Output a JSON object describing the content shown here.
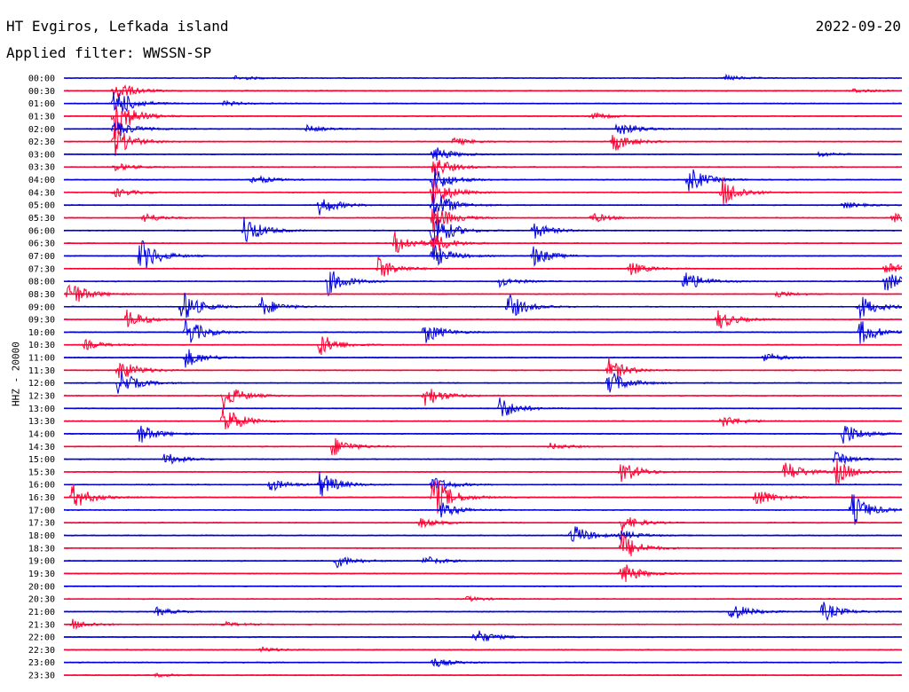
{
  "header": {
    "station": "HT Evgiros, Lefkada island",
    "date": "2022-09-20",
    "filter": "Applied filter: WWSSN-SP"
  },
  "chart_data": {
    "type": "line",
    "title": "HT Evgiros, Lefkada island",
    "ylabel": "HHZ - 20000",
    "colors": [
      "#0000dd",
      "#ff0033"
    ],
    "grid": false,
    "traces": [
      {
        "label": "00:00",
        "events": [
          {
            "x": 0.205,
            "amp": 3
          },
          {
            "x": 0.79,
            "amp": 3
          }
        ]
      },
      {
        "label": "00:30",
        "events": [
          {
            "x": 0.06,
            "amp": 14
          },
          {
            "x": 0.94,
            "amp": 3
          }
        ]
      },
      {
        "label": "01:00",
        "events": [
          {
            "x": 0.06,
            "amp": 20
          },
          {
            "x": 0.19,
            "amp": 3
          }
        ]
      },
      {
        "label": "01:30",
        "events": [
          {
            "x": 0.06,
            "amp": 28
          },
          {
            "x": 0.63,
            "amp": 4
          }
        ]
      },
      {
        "label": "02:00",
        "events": [
          {
            "x": 0.06,
            "amp": 12
          },
          {
            "x": 0.29,
            "amp": 4
          },
          {
            "x": 0.66,
            "amp": 10
          }
        ]
      },
      {
        "label": "02:30",
        "events": [
          {
            "x": 0.06,
            "amp": 18
          },
          {
            "x": 0.465,
            "amp": 5
          },
          {
            "x": 0.655,
            "amp": 12
          }
        ]
      },
      {
        "label": "03:00",
        "events": [
          {
            "x": 0.44,
            "amp": 10
          },
          {
            "x": 0.9,
            "amp": 3
          }
        ]
      },
      {
        "label": "03:30",
        "events": [
          {
            "x": 0.06,
            "amp": 5
          },
          {
            "x": 0.44,
            "amp": 14
          }
        ]
      },
      {
        "label": "04:00",
        "events": [
          {
            "x": 0.225,
            "amp": 6
          },
          {
            "x": 0.44,
            "amp": 16
          },
          {
            "x": 0.745,
            "amp": 16
          }
        ]
      },
      {
        "label": "04:30",
        "events": [
          {
            "x": 0.06,
            "amp": 6
          },
          {
            "x": 0.44,
            "amp": 18
          },
          {
            "x": 0.785,
            "amp": 18
          }
        ]
      },
      {
        "label": "05:00",
        "events": [
          {
            "x": 0.305,
            "amp": 12
          },
          {
            "x": 0.44,
            "amp": 20
          },
          {
            "x": 0.93,
            "amp": 4
          }
        ]
      },
      {
        "label": "05:30",
        "events": [
          {
            "x": 0.095,
            "amp": 6
          },
          {
            "x": 0.44,
            "amp": 18
          },
          {
            "x": 0.63,
            "amp": 6
          },
          {
            "x": 0.99,
            "amp": 8
          }
        ]
      },
      {
        "label": "06:00",
        "events": [
          {
            "x": 0.215,
            "amp": 18
          },
          {
            "x": 0.44,
            "amp": 24
          },
          {
            "x": 0.56,
            "amp": 10
          }
        ]
      },
      {
        "label": "06:30",
        "events": [
          {
            "x": 0.395,
            "amp": 14
          },
          {
            "x": 0.44,
            "amp": 12
          }
        ]
      },
      {
        "label": "07:00",
        "events": [
          {
            "x": 0.09,
            "amp": 22
          },
          {
            "x": 0.44,
            "amp": 14
          },
          {
            "x": 0.56,
            "amp": 12
          }
        ]
      },
      {
        "label": "07:30",
        "events": [
          {
            "x": 0.375,
            "amp": 14
          },
          {
            "x": 0.675,
            "amp": 8
          },
          {
            "x": 0.98,
            "amp": 10
          }
        ]
      },
      {
        "label": "08:00",
        "events": [
          {
            "x": 0.315,
            "amp": 16
          },
          {
            "x": 0.52,
            "amp": 6
          },
          {
            "x": 0.74,
            "amp": 14
          },
          {
            "x": 0.98,
            "amp": 12
          }
        ]
      },
      {
        "label": "08:30",
        "events": [
          {
            "x": 0.005,
            "amp": 18
          },
          {
            "x": 0.85,
            "amp": 4
          }
        ]
      },
      {
        "label": "09:00",
        "events": [
          {
            "x": 0.14,
            "amp": 20
          },
          {
            "x": 0.235,
            "amp": 12
          },
          {
            "x": 0.53,
            "amp": 16
          },
          {
            "x": 0.95,
            "amp": 14
          }
        ]
      },
      {
        "label": "09:30",
        "events": [
          {
            "x": 0.075,
            "amp": 12
          },
          {
            "x": 0.78,
            "amp": 12
          }
        ]
      },
      {
        "label": "10:00",
        "events": [
          {
            "x": 0.145,
            "amp": 18
          },
          {
            "x": 0.43,
            "amp": 14
          },
          {
            "x": 0.95,
            "amp": 16
          }
        ]
      },
      {
        "label": "10:30",
        "events": [
          {
            "x": 0.025,
            "amp": 6
          },
          {
            "x": 0.305,
            "amp": 14
          }
        ]
      },
      {
        "label": "11:00",
        "events": [
          {
            "x": 0.145,
            "amp": 12
          },
          {
            "x": 0.835,
            "amp": 6
          }
        ]
      },
      {
        "label": "11:30",
        "events": [
          {
            "x": 0.065,
            "amp": 14
          },
          {
            "x": 0.65,
            "amp": 14
          }
        ]
      },
      {
        "label": "12:00",
        "events": [
          {
            "x": 0.065,
            "amp": 16
          },
          {
            "x": 0.65,
            "amp": 16
          }
        ]
      },
      {
        "label": "12:30",
        "events": [
          {
            "x": 0.19,
            "amp": 16
          },
          {
            "x": 0.43,
            "amp": 14
          }
        ]
      },
      {
        "label": "13:00",
        "events": [
          {
            "x": 0.52,
            "amp": 14
          }
        ]
      },
      {
        "label": "13:30",
        "events": [
          {
            "x": 0.19,
            "amp": 20
          },
          {
            "x": 0.785,
            "amp": 8
          }
        ]
      },
      {
        "label": "14:00",
        "events": [
          {
            "x": 0.09,
            "amp": 12
          },
          {
            "x": 0.93,
            "amp": 14
          }
        ]
      },
      {
        "label": "14:30",
        "events": [
          {
            "x": 0.32,
            "amp": 12
          },
          {
            "x": 0.58,
            "amp": 4
          }
        ]
      },
      {
        "label": "15:00",
        "events": [
          {
            "x": 0.12,
            "amp": 8
          },
          {
            "x": 0.92,
            "amp": 8
          }
        ]
      },
      {
        "label": "15:30",
        "events": [
          {
            "x": 0.665,
            "amp": 14
          },
          {
            "x": 0.86,
            "amp": 14
          },
          {
            "x": 0.92,
            "amp": 16
          }
        ]
      },
      {
        "label": "16:00",
        "events": [
          {
            "x": 0.245,
            "amp": 8
          },
          {
            "x": 0.305,
            "amp": 16
          },
          {
            "x": 0.44,
            "amp": 10
          }
        ]
      },
      {
        "label": "16:30",
        "events": [
          {
            "x": 0.01,
            "amp": 16
          },
          {
            "x": 0.44,
            "amp": 28
          },
          {
            "x": 0.825,
            "amp": 12
          }
        ]
      },
      {
        "label": "17:00",
        "events": [
          {
            "x": 0.45,
            "amp": 10
          },
          {
            "x": 0.94,
            "amp": 20
          }
        ]
      },
      {
        "label": "17:30",
        "events": [
          {
            "x": 0.425,
            "amp": 6
          },
          {
            "x": 0.665,
            "amp": 10
          }
        ]
      },
      {
        "label": "18:00",
        "events": [
          {
            "x": 0.605,
            "amp": 14
          },
          {
            "x": 0.665,
            "amp": 6
          }
        ]
      },
      {
        "label": "18:30",
        "events": [
          {
            "x": 0.665,
            "amp": 18
          }
        ]
      },
      {
        "label": "19:00",
        "events": [
          {
            "x": 0.325,
            "amp": 8
          },
          {
            "x": 0.43,
            "amp": 6
          }
        ]
      },
      {
        "label": "19:30",
        "events": [
          {
            "x": 0.665,
            "amp": 14
          }
        ]
      },
      {
        "label": "20:00",
        "events": []
      },
      {
        "label": "20:30",
        "events": [
          {
            "x": 0.48,
            "amp": 3
          }
        ]
      },
      {
        "label": "21:00",
        "events": [
          {
            "x": 0.11,
            "amp": 5
          },
          {
            "x": 0.795,
            "amp": 12
          },
          {
            "x": 0.905,
            "amp": 12
          }
        ]
      },
      {
        "label": "21:30",
        "events": [
          {
            "x": 0.01,
            "amp": 6
          },
          {
            "x": 0.19,
            "amp": 3
          }
        ]
      },
      {
        "label": "22:00",
        "events": [
          {
            "x": 0.49,
            "amp": 10
          }
        ]
      },
      {
        "label": "22:30",
        "events": [
          {
            "x": 0.235,
            "amp": 3
          }
        ]
      },
      {
        "label": "23:00",
        "events": [
          {
            "x": 0.44,
            "amp": 6
          }
        ]
      },
      {
        "label": "23:30",
        "events": [
          {
            "x": 0.11,
            "amp": 2
          }
        ]
      }
    ]
  }
}
